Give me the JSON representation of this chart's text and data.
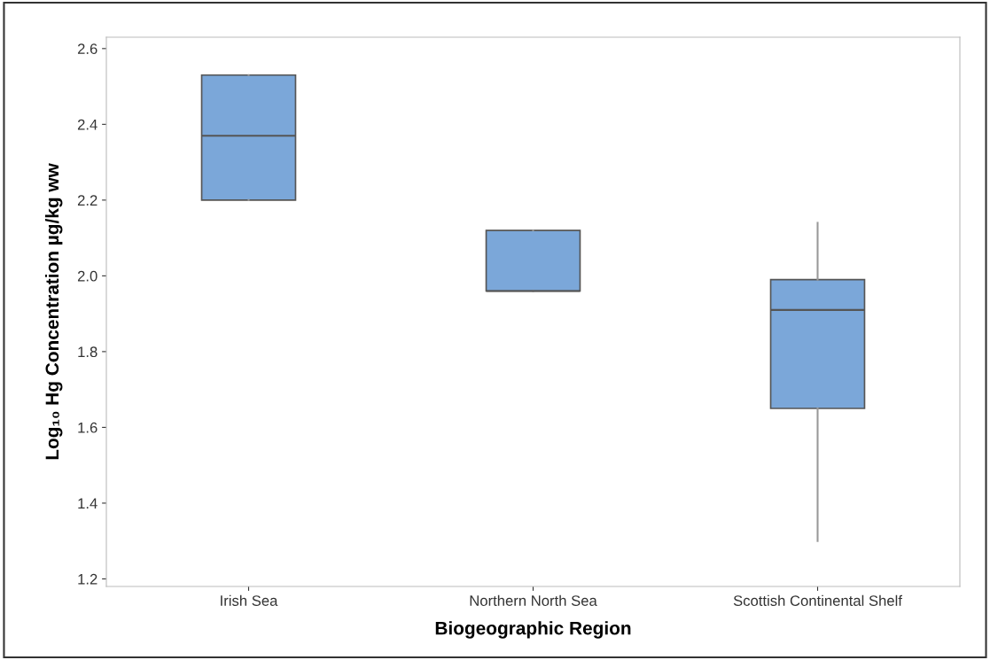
{
  "chart_data": {
    "type": "box",
    "xlabel": "Biogeographic Region",
    "ylabel": "Log₁₀ Hg Concentration µg/kg ww",
    "categories": [
      "Irish Sea",
      "Northern North Sea",
      "Scottish Continental Shelf"
    ],
    "color": "#7ba7d9",
    "boxes": [
      {
        "low": 2.2,
        "q1": 2.2,
        "median": 2.37,
        "q3": 2.53,
        "high": 2.53
      },
      {
        "low": 1.96,
        "q1": 1.96,
        "median": 1.96,
        "q3": 2.12,
        "high": 2.12
      },
      {
        "low": 1.3,
        "q1": 1.65,
        "median": 1.91,
        "q3": 1.99,
        "high": 2.14
      }
    ],
    "ylim": [
      1.18,
      2.63
    ],
    "yticks": [
      {
        "value": 1.2,
        "label": "1.2"
      },
      {
        "value": 1.4,
        "label": "1.4"
      },
      {
        "value": 1.6,
        "label": "1.6"
      },
      {
        "value": 1.8,
        "label": "1.8"
      },
      {
        "value": 2.0,
        "label": "2.0"
      },
      {
        "value": 2.2,
        "label": "2.2"
      },
      {
        "value": 2.4,
        "label": "2.4"
      },
      {
        "value": 2.6,
        "label": "2.6"
      }
    ],
    "grid": false
  }
}
